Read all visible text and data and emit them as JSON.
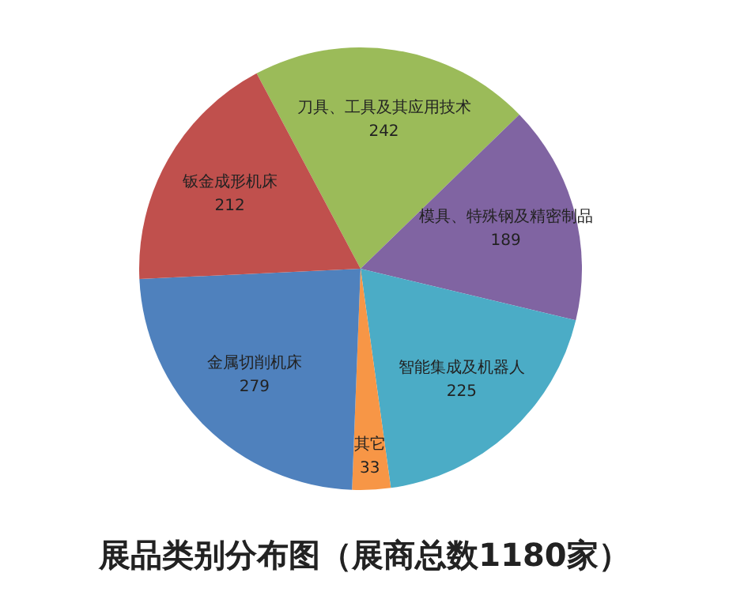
{
  "chart_data": {
    "type": "pie",
    "title": "展品类别分布图（展商总数1180家）",
    "categories": [
      "刀具、工具及其应用技术",
      "模具、特殊钢及精密制品",
      "智能集成及机器人",
      "其它",
      "金属切削机床",
      "钣金成形机床"
    ],
    "values": [
      242,
      189,
      225,
      33,
      279,
      212
    ],
    "colors": [
      "#9bbb59",
      "#8064a2",
      "#4bacc6",
      "#f79646",
      "#4f81bd",
      "#c0504d"
    ],
    "data_labels": true,
    "legend": false
  }
}
